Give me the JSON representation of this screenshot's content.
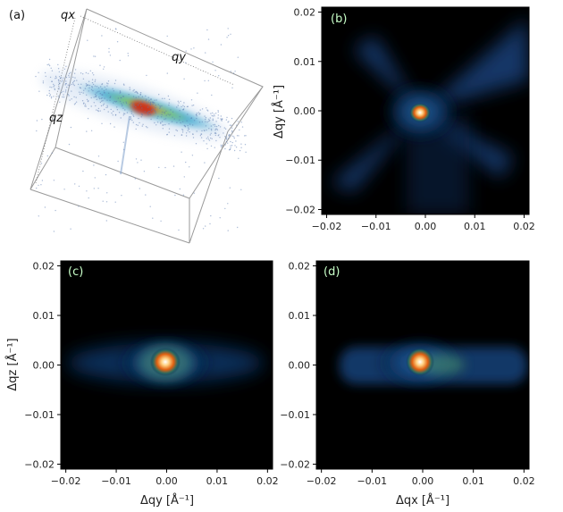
{
  "figure": {
    "panel_a": {
      "label": "(a)",
      "axis_labels": {
        "qx": "qx",
        "qy": "qy",
        "qz": "qz"
      }
    },
    "panel_b": {
      "label": "(b)",
      "xlabel": "",
      "ylabel": "Δqy [Å⁻¹]",
      "xticks": [
        "−0.02",
        "−0.01",
        "0.00",
        "0.01",
        "0.02"
      ],
      "yticks": [
        "0.02",
        "0.01",
        "0.00",
        "−0.01",
        "−0.02"
      ]
    },
    "panel_c": {
      "label": "(c)",
      "xlabel": "Δqy [Å⁻¹]",
      "ylabel": "Δqz [Å⁻¹]",
      "xticks": [
        "−0.02",
        "−0.01",
        "0.00",
        "0.01",
        "0.02"
      ],
      "yticks": [
        "0.02",
        "0.01",
        "0.00",
        "−0.01",
        "−0.02"
      ]
    },
    "panel_d": {
      "label": "(d)",
      "xlabel": "Δqx [Å⁻¹]",
      "ylabel": "",
      "xticks": [
        "−0.02",
        "−0.01",
        "0.00",
        "0.01",
        "0.02"
      ],
      "yticks": [
        "0.02",
        "0.01",
        "0.00",
        "−0.01",
        "−0.02"
      ]
    }
  },
  "chart_data": [
    {
      "type": "heatmap",
      "panel": "(b)",
      "xlabel": "",
      "ylabel": "Δqy [Å⁻¹]",
      "xlim": [
        -0.021,
        0.021
      ],
      "ylim": [
        -0.021,
        0.021
      ],
      "colormap": "black-blue-green-orange-white",
      "peak": {
        "x": -0.0005,
        "y": 0.0
      },
      "grid": false
    },
    {
      "type": "heatmap",
      "panel": "(c)",
      "xlabel": "Δqy [Å⁻¹]",
      "ylabel": "Δqz [Å⁻¹]",
      "xlim": [
        -0.021,
        0.021
      ],
      "ylim": [
        -0.021,
        0.021
      ],
      "colormap": "black-blue-green-orange-white",
      "peak": {
        "x": 0.0,
        "y": 0.0
      },
      "grid": false
    },
    {
      "type": "heatmap",
      "panel": "(d)",
      "xlabel": "Δqx [Å⁻¹]",
      "ylabel": "",
      "xlim": [
        -0.021,
        0.021
      ],
      "ylim": [
        -0.021,
        0.021
      ],
      "colormap": "black-blue-green-orange-white",
      "peak": {
        "x": -0.001,
        "y": 0.0
      },
      "grid": false
    }
  ]
}
